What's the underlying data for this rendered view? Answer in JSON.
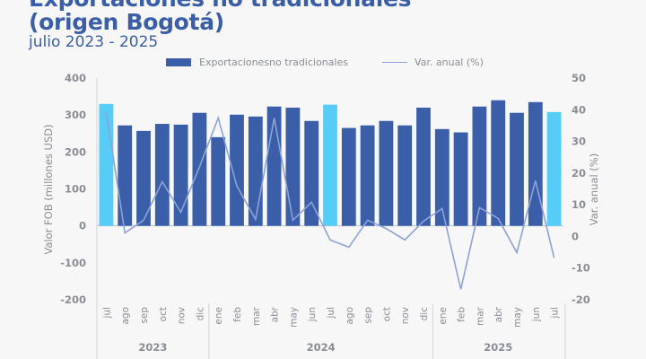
{
  "header": {
    "title_line1": "Exportaciones no tradicionales",
    "title_line2": "(origen Bogotá)",
    "subtitle": "julio 2023 - 2025"
  },
  "colors": {
    "bar": "#3a5fa8",
    "bar_highlight": "#55cdf7",
    "line": "#8da2d8",
    "text": "#8a8d95",
    "title": "#3a5fa8"
  },
  "chart_data": {
    "type": "bar",
    "title": "Exportaciones no tradicionales (origen Bogotá)",
    "subtitle": "julio 2023 - 2025",
    "legend": [
      "Exportacionesno tradicionales",
      "Var. anual (%)"
    ],
    "legend_position": "top",
    "ylabel": "Valor FOB (millones USD)",
    "y2label": "Var. anual (%)",
    "ylim": [
      -200,
      400
    ],
    "yticks": [
      "400",
      "300",
      "200",
      "100",
      "0",
      "-100",
      "-200"
    ],
    "y2lim": [
      -20,
      50
    ],
    "y2ticks": [
      "50",
      "40",
      "30",
      "20",
      "10",
      "0",
      "-10",
      "-20"
    ],
    "categories": [
      "jul",
      "ago",
      "sep",
      "oct",
      "nov",
      "dic",
      "ene",
      "feb",
      "mar",
      "abr",
      "may",
      "jun",
      "jul",
      "ago",
      "sep",
      "oct",
      "nov",
      "dic",
      "ene",
      "feb",
      "mar",
      "abr",
      "may",
      "jun",
      "jul"
    ],
    "years": [
      {
        "label": "2023",
        "count": 6
      },
      {
        "label": "2024",
        "count": 12
      },
      {
        "label": "2025",
        "count": 7
      }
    ],
    "highlight_indices": [
      0,
      12,
      24
    ],
    "series": [
      {
        "name": "Exportacionesno tradicionales",
        "type": "bar",
        "axis": "left",
        "values": [
          330,
          272,
          257,
          276,
          274,
          306,
          240,
          301,
          296,
          323,
          320,
          284,
          328,
          265,
          272,
          284,
          272,
          320,
          262,
          253,
          323,
          340,
          306,
          335,
          308
        ]
      },
      {
        "name": "Var. anual (%)",
        "type": "line",
        "axis": "right",
        "values": [
          39.4,
          1.1,
          5.1,
          17.3,
          7.6,
          22.0,
          37.4,
          15.9,
          5.4,
          37.4,
          5.1,
          10.8,
          -1.1,
          -3.4,
          5.1,
          2.5,
          -1.1,
          4.8,
          8.8,
          -16.7,
          9.1,
          5.7,
          -5.1,
          17.6,
          -6.8
        ]
      }
    ]
  }
}
